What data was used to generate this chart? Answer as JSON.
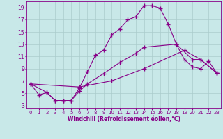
{
  "background_color": "#c8e8e8",
  "grid_color": "#b0d0d0",
  "line_color": "#880088",
  "xlabel": "Windchill (Refroidissement éolien,°C)",
  "ylabel_ticks": [
    3,
    5,
    7,
    9,
    11,
    13,
    15,
    17,
    19
  ],
  "xlim": [
    -0.5,
    23.5
  ],
  "ylim": [
    2.5,
    20.0
  ],
  "xticks": [
    0,
    1,
    2,
    3,
    4,
    5,
    6,
    7,
    8,
    9,
    10,
    11,
    12,
    13,
    14,
    15,
    16,
    17,
    18,
    19,
    20,
    21,
    22,
    23
  ],
  "line1_x": [
    0,
    1,
    2,
    3,
    4,
    5,
    6,
    7,
    8,
    9,
    10,
    11,
    12,
    13,
    14,
    15,
    16,
    17,
    18,
    19,
    20,
    21,
    22,
    23
  ],
  "line1_y": [
    6.5,
    4.7,
    5.1,
    3.8,
    3.8,
    3.8,
    5.8,
    8.5,
    11.2,
    12.0,
    14.5,
    15.5,
    17.0,
    17.5,
    19.3,
    19.3,
    18.9,
    16.3,
    13.0,
    10.5,
    9.3,
    9.0,
    10.2,
    8.3
  ],
  "line2_x": [
    0,
    2,
    3,
    4,
    5,
    6,
    7,
    9,
    11,
    13,
    14,
    18,
    20,
    21,
    23
  ],
  "line2_y": [
    6.5,
    5.1,
    3.8,
    3.8,
    3.8,
    5.3,
    6.5,
    8.2,
    10.0,
    11.5,
    12.5,
    13.0,
    10.5,
    10.5,
    8.3
  ],
  "line3_x": [
    0,
    6,
    10,
    14,
    19,
    21,
    23
  ],
  "line3_y": [
    6.5,
    6.0,
    7.0,
    9.0,
    12.0,
    10.5,
    8.3
  ],
  "marker": "+",
  "marker_size": 4,
  "linewidth": 0.8,
  "tick_fontsize": 5.0,
  "xlabel_fontsize": 5.5
}
